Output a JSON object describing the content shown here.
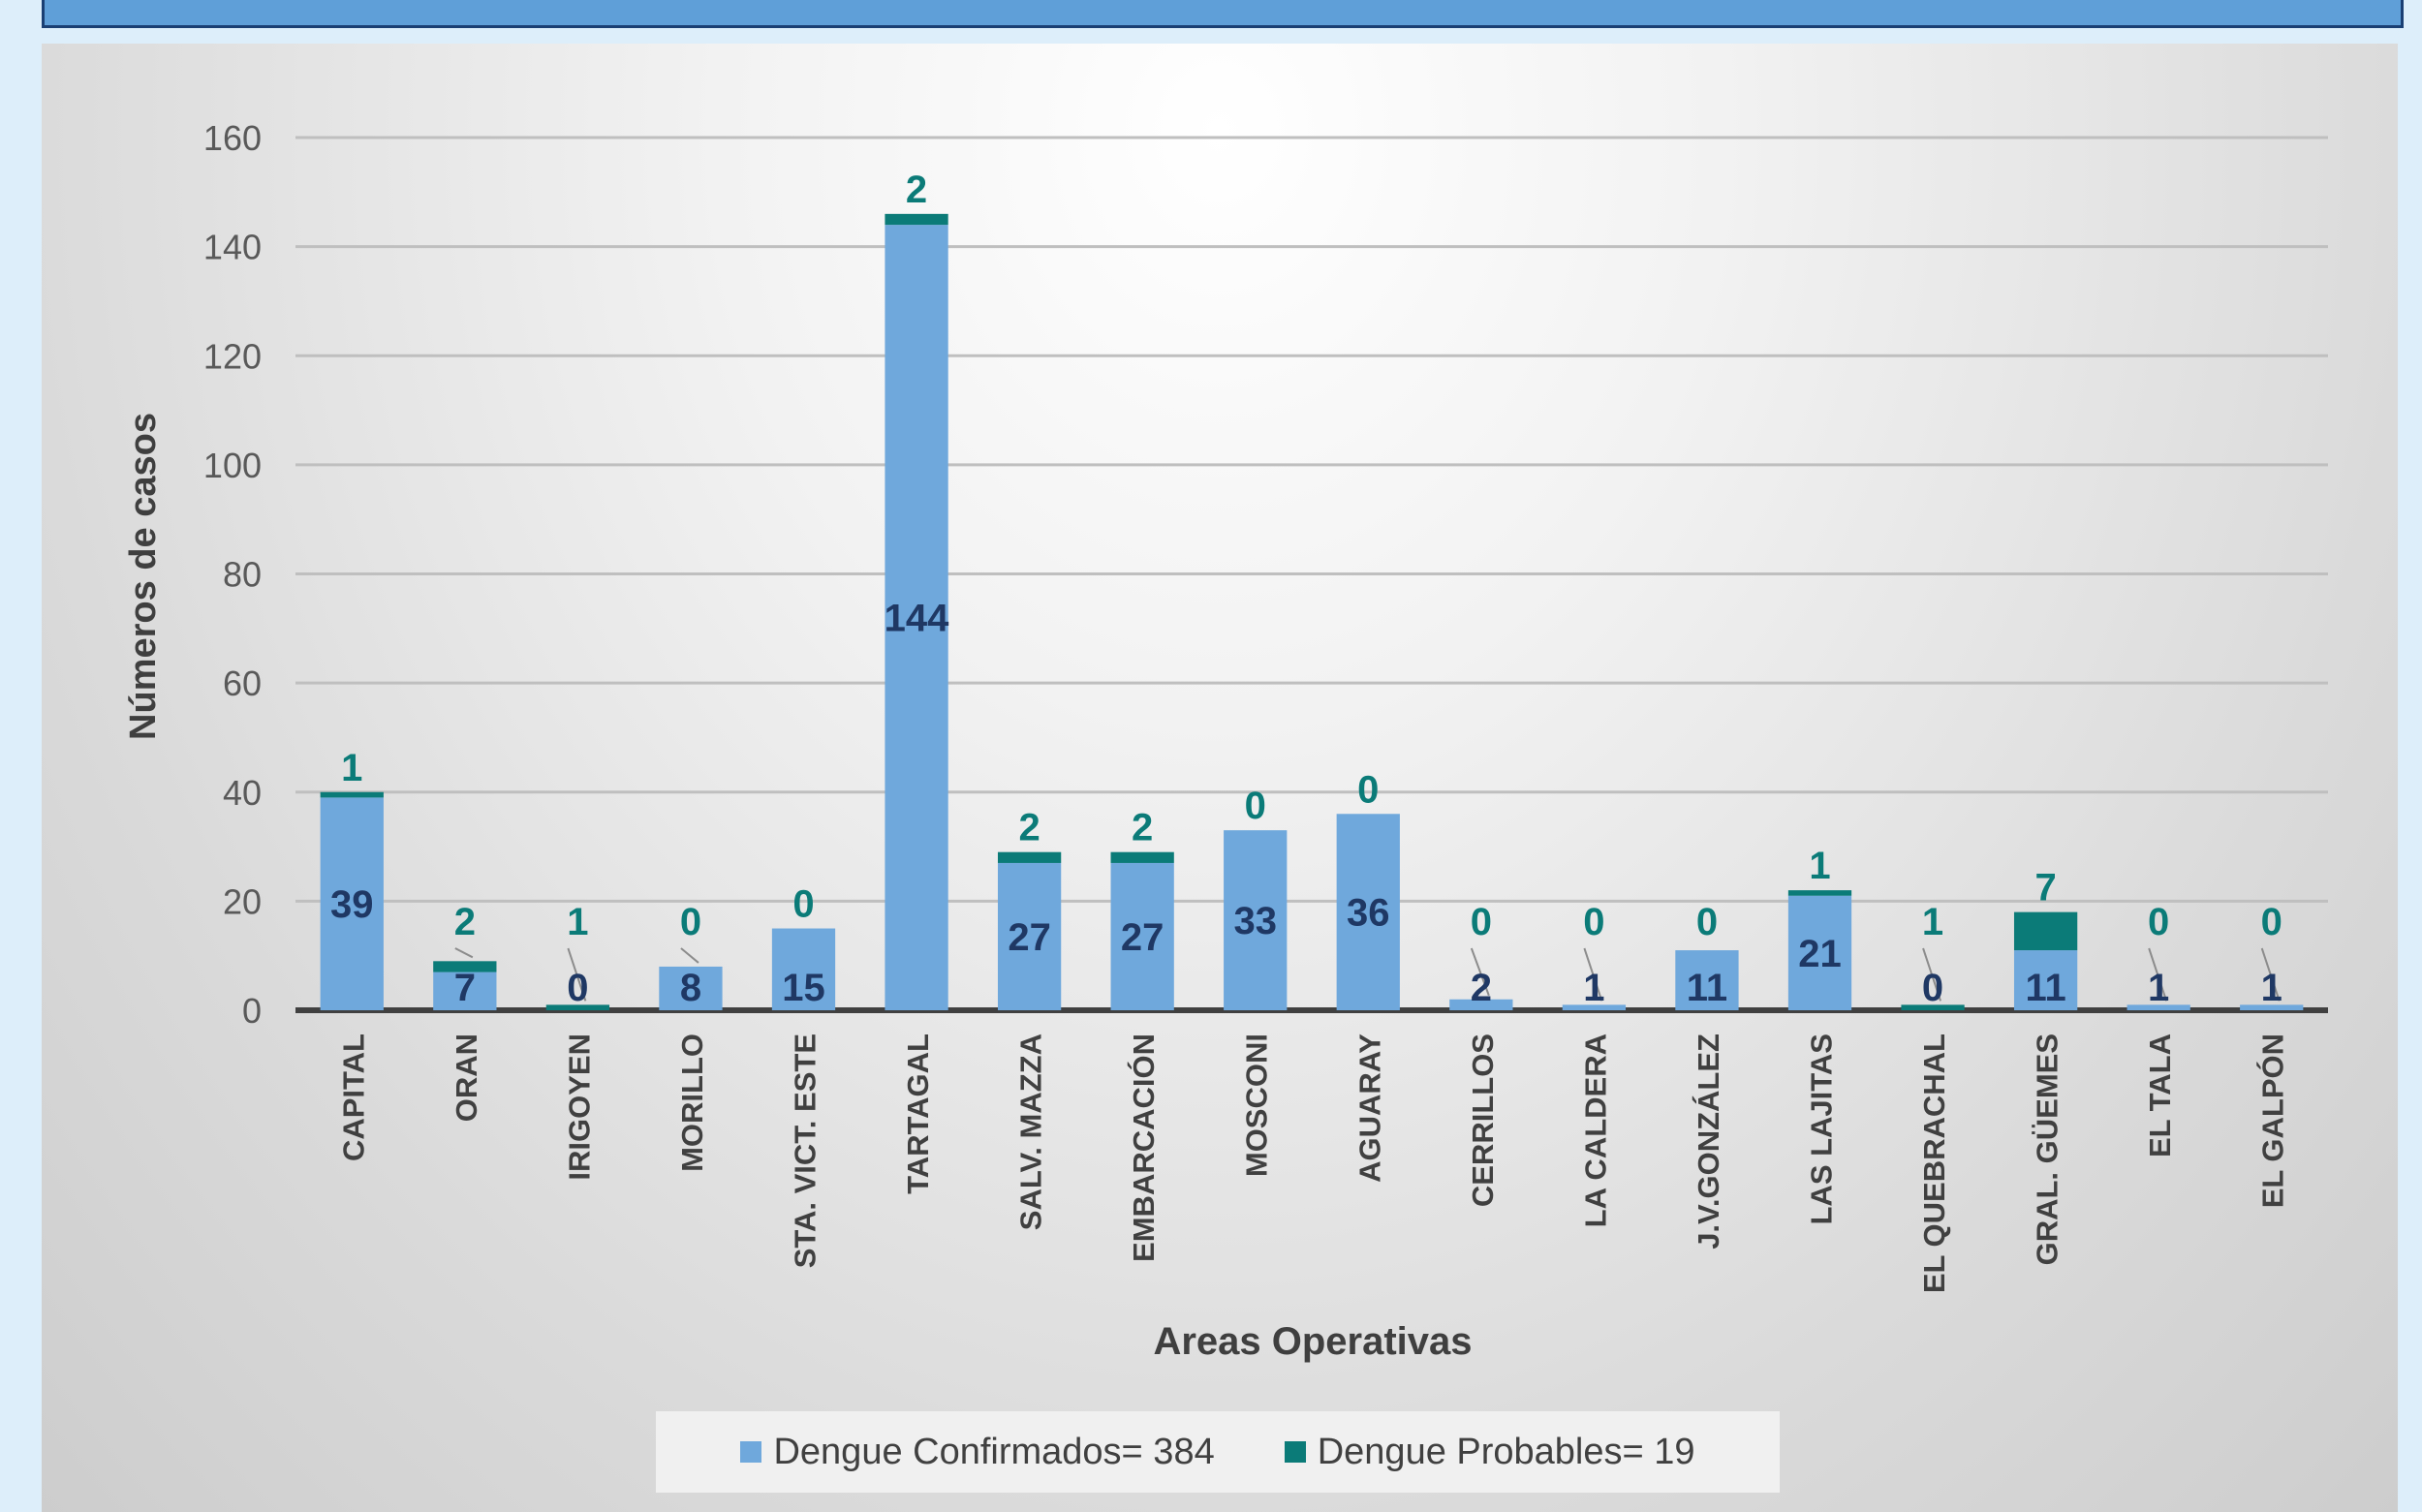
{
  "chart_data": {
    "type": "bar",
    "stacked": true,
    "categories": [
      "CAPITAL",
      "ORAN",
      "IRIGOYEN",
      "MORILLO",
      "STA. VICT. ESTE",
      "TARTAGAL",
      "SALV. MAZZA",
      "EMBARCACIÓN",
      "MOSCONI",
      "AGUARAY",
      "CERRILLOS",
      "LA CALDERA",
      "J.V.GONZÁLEZ",
      "LAS LAJITAS",
      "EL QUEBRACHAL",
      "GRAL. GÜEMES",
      "EL TALA",
      "EL GALPÓN"
    ],
    "series": [
      {
        "name": "Dengue  Confirmados= 384",
        "color": "#6fa8dc",
        "label_color": "#1f3864",
        "values": [
          39,
          7,
          0,
          8,
          15,
          144,
          27,
          27,
          33,
          36,
          2,
          1,
          11,
          21,
          0,
          11,
          1,
          1
        ]
      },
      {
        "name": "Dengue  Probables= 19",
        "color": "#0b7b78",
        "label_color": "#0b7b78",
        "values": [
          1,
          2,
          1,
          0,
          0,
          2,
          2,
          2,
          0,
          0,
          0,
          0,
          0,
          1,
          1,
          7,
          0,
          0
        ]
      }
    ],
    "yticks": [
      0,
      20,
      40,
      60,
      80,
      100,
      120,
      140,
      160
    ],
    "ylim": [
      0,
      160
    ],
    "ylabel": "Números de casos",
    "xlabel": "Areas Operativas",
    "grid": true,
    "legend_position": "bottom"
  }
}
